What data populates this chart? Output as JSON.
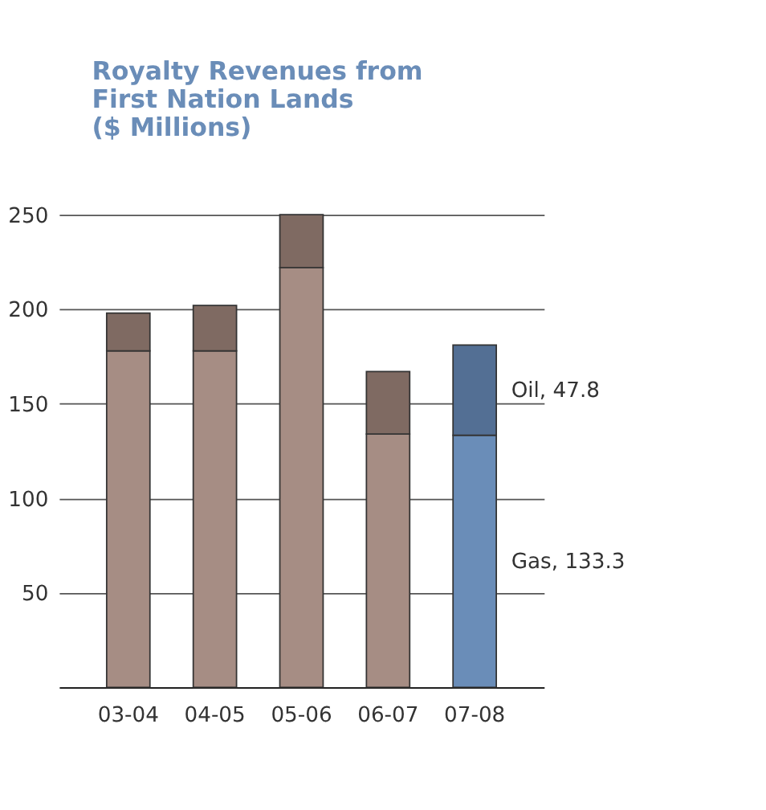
{
  "chart_data": {
    "type": "bar",
    "stacked": true,
    "title": "Royalty Revenues from\nFirst Nation Lands\n($ Millions)",
    "categories": [
      "03-04",
      "04-05",
      "05-06",
      "06-07",
      "07-08"
    ],
    "series": [
      {
        "colors": [
          "#a68d84",
          "#a68d84",
          "#a68d84",
          "#a68d84",
          "#6a8db8"
        ],
        "values": [
          178,
          178,
          222,
          134,
          133.3
        ]
      },
      {
        "colors": [
          "#7f6a62",
          "#7f6a62",
          "#7f6a62",
          "#7f6a62",
          "#536f94"
        ],
        "values": [
          20,
          24,
          28,
          33,
          47.8
        ]
      }
    ],
    "ylim": [
      0,
      250
    ],
    "yticks": [
      50,
      100,
      150,
      200,
      250
    ],
    "grid": "y",
    "annotations": [
      "Oil, 47.8",
      "Gas, 133.3"
    ]
  }
}
